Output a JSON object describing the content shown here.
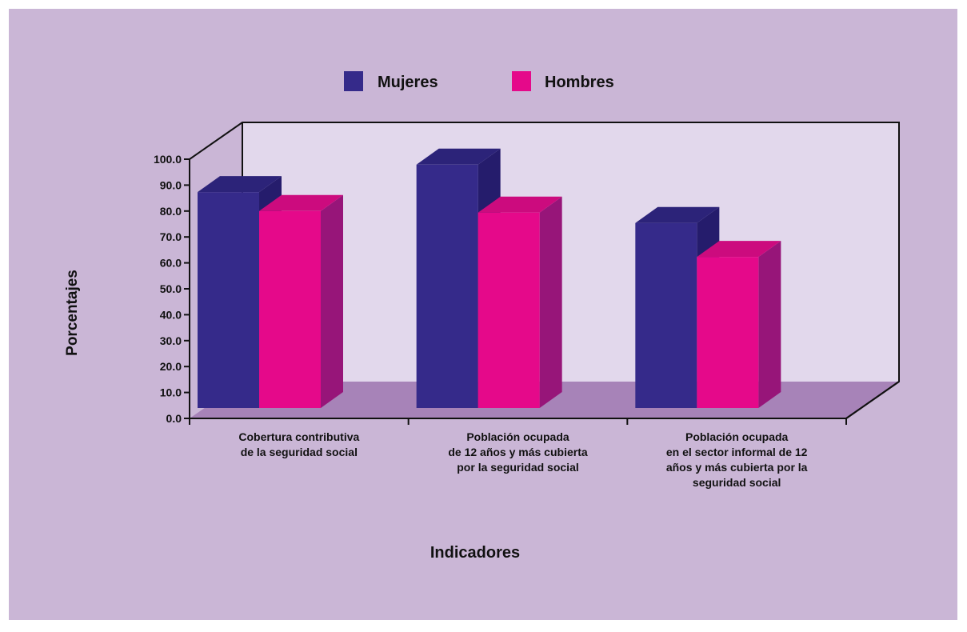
{
  "colors": {
    "background": "#cab6d6",
    "back_wall": "#e2d8ec",
    "floor": "#a783b8",
    "mujeres": "#352a8a",
    "mujeres_top": "#2c2379",
    "mujeres_side": "#251c6c",
    "hombres": "#e5098a",
    "hombres_top": "#cc0b7e",
    "hombres_side": "#971579"
  },
  "chart_data": {
    "type": "bar",
    "title": "",
    "xlabel": "Indicadores",
    "ylabel": "Porcentajes",
    "ylim": [
      0,
      100
    ],
    "yticks": [
      "0.0",
      "10.0",
      "20.0",
      "30.0",
      "40.0",
      "50.0",
      "60.0",
      "70.0",
      "80.0",
      "90.0",
      "100.0"
    ],
    "categories": [
      [
        "Cobertura contributiva",
        "de la seguridad social"
      ],
      [
        "Población ocupada",
        "de 12 años y más cubierta",
        "por la seguridad social"
      ],
      [
        "Población ocupada",
        "en el sector informal de 12",
        "años y más cubierta por la",
        "seguridad social"
      ]
    ],
    "series": [
      {
        "name": "Mujeres",
        "values": [
          83.6,
          94.2,
          71.7
        ]
      },
      {
        "name": "Hombres",
        "values": [
          76.3,
          75.7,
          58.6
        ]
      }
    ],
    "legend": "top-center",
    "style": "3d-clustered-column"
  }
}
